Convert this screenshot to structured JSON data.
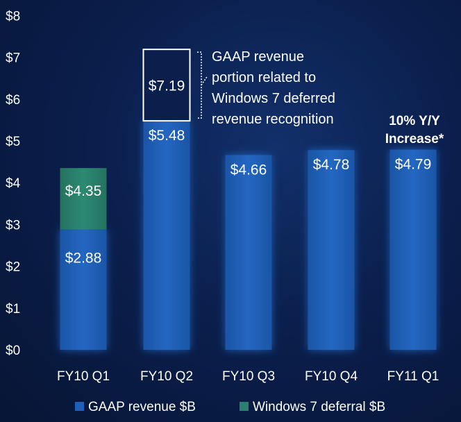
{
  "chart_data": {
    "type": "bar",
    "stacked": true,
    "categories": [
      "FY10 Q1",
      "FY10 Q2",
      "FY10 Q3",
      "FY10 Q4",
      "FY11 Q1"
    ],
    "series": [
      {
        "name": "GAAP revenue $B",
        "color": "#1f5fb5",
        "values": [
          2.88,
          5.48,
          4.66,
          4.78,
          4.79
        ]
      },
      {
        "name": "Windows 7 deferral $B",
        "color": "#2a7f6f",
        "values": [
          1.47,
          0,
          0,
          0,
          0
        ]
      }
    ],
    "bar_labels": {
      "totals": [
        "$4.35",
        "",
        "",
        "",
        ""
      ],
      "base": [
        "$2.88",
        "$5.48",
        "$4.66",
        "$4.78",
        "$4.79"
      ]
    },
    "gaap_portion": {
      "category": "FY10 Q2",
      "from": 5.48,
      "to": 7.19,
      "label": "$7.19",
      "annotation": [
        "GAAP revenue",
        "portion related to",
        "Windows 7 deferred",
        "revenue recognition"
      ]
    },
    "callout": {
      "category": "FY11 Q1",
      "lines": [
        "10%  Y/Y",
        "Increase*"
      ]
    },
    "y_ticks": [
      "$0",
      "$1",
      "$2",
      "$3",
      "$4",
      "$5",
      "$6",
      "$7",
      "$8"
    ],
    "ylim": [
      0,
      8
    ],
    "grid": false,
    "legend": "bottom"
  }
}
